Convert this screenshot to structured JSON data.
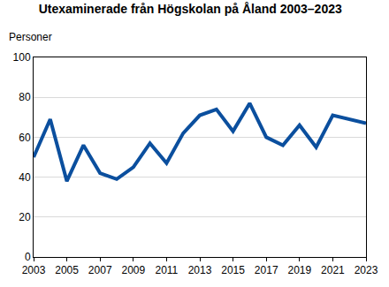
{
  "chart_data": {
    "type": "line",
    "title": "Utexaminerade från Högskolan på Åland 2003–2023",
    "ylabel": "Personer",
    "x": [
      2003,
      2004,
      2005,
      2006,
      2007,
      2008,
      2009,
      2010,
      2011,
      2012,
      2013,
      2014,
      2015,
      2016,
      2017,
      2018,
      2019,
      2020,
      2021,
      2022,
      2023
    ],
    "values": [
      50,
      69,
      38,
      56,
      42,
      39,
      45,
      57,
      47,
      62,
      71,
      74,
      63,
      77,
      60,
      56,
      66,
      55,
      71,
      69,
      67
    ],
    "color": "#0b4f9e",
    "xlim": [
      2003,
      2023
    ],
    "xticks": [
      2003,
      2005,
      2007,
      2009,
      2011,
      2013,
      2015,
      2017,
      2019,
      2021,
      2023
    ],
    "ylim": [
      0,
      100
    ],
    "yticks": [
      0,
      20,
      40,
      60,
      80,
      100
    ],
    "grid": true
  }
}
